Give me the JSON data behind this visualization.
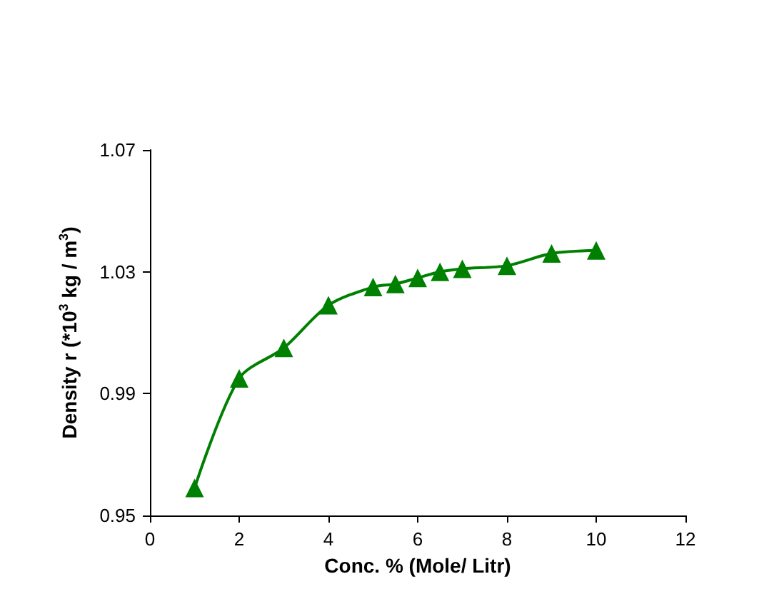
{
  "chart_data": {
    "type": "line",
    "xlabel": "Conc. % (Mole/ Litr)",
    "ylabel": "Density r (*10$^{3}$ kg / m$^{3}$)",
    "x": [
      1,
      2,
      3,
      4,
      5,
      5.5,
      6,
      6.5,
      7,
      8,
      9,
      10
    ],
    "series": [
      {
        "color": "#008000",
        "values": [
          0.959,
          0.995,
          1.005,
          1.019,
          1.025,
          1.026,
          1.028,
          1.03,
          1.031,
          1.032,
          1.036,
          1.037
        ]
      }
    ],
    "xlim": [
      0,
      12
    ],
    "xticks": [
      0,
      2,
      4,
      6,
      8,
      10,
      12
    ],
    "ylim": [
      0.95,
      1.07
    ],
    "yticks": [
      0.95,
      0.99,
      1.03,
      1.07
    ],
    "grid": false,
    "marker": "triangle",
    "line_style": "solid"
  }
}
